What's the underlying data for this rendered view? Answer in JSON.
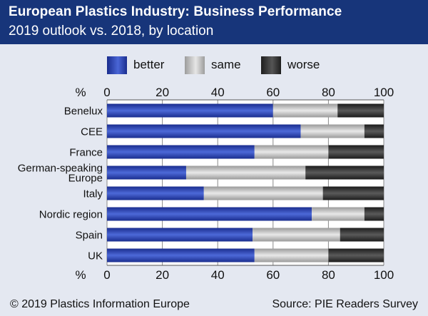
{
  "header": {
    "title": "European Plastics Industry: Business Performance",
    "subtitle": "2019 outlook vs. 2018, by location"
  },
  "footer": {
    "copyright": "© 2019 Plastics Information Europe",
    "source": "Source: PIE Readers Survey"
  },
  "colors": {
    "header_bg": "#17357a",
    "background": "#e4e8f1",
    "better": "#2a44c0",
    "same": "#c8c8c8",
    "worse": "#3a3a3a"
  },
  "chart_data": {
    "type": "bar",
    "orientation": "horizontal",
    "stacked": true,
    "unit_label": "%",
    "xlim": [
      0,
      100
    ],
    "ticks": [
      0,
      20,
      40,
      60,
      80,
      100
    ],
    "grid": true,
    "legend_placement": "top",
    "categories": [
      "Benelux",
      "CEE",
      "France",
      "German-speaking Europe",
      "Italy",
      "Nordic region",
      "Spain",
      "UK"
    ],
    "category_lines": [
      [
        "Benelux"
      ],
      [
        "CEE"
      ],
      [
        "France"
      ],
      [
        "German-speaking",
        "Europe"
      ],
      [
        "Italy"
      ],
      [
        "Nordic region"
      ],
      [
        "Spain"
      ],
      [
        "UK"
      ]
    ],
    "series": [
      {
        "name": "better",
        "values": [
          60,
          70,
          53.3,
          28.6,
          35,
          74,
          52.6,
          53.3
        ]
      },
      {
        "name": "same",
        "values": [
          23.3,
          23,
          26.7,
          43.1,
          43,
          19,
          31.6,
          26.7
        ]
      },
      {
        "name": "worse",
        "values": [
          16.7,
          7,
          20,
          28.3,
          22,
          7,
          15.8,
          20
        ]
      }
    ]
  }
}
